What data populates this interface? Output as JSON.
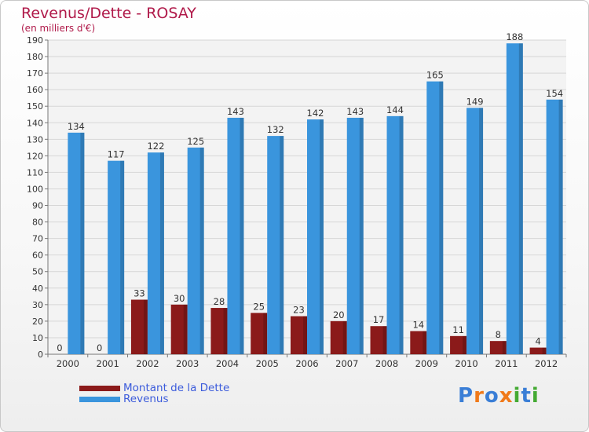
{
  "chart_data": {
    "type": "bar",
    "title": "Revenus/Dette - ROSAY",
    "subtitle": "(en milliers d'€)",
    "categories": [
      "2000",
      "2001",
      "2002",
      "2003",
      "2004",
      "2005",
      "2006",
      "2007",
      "2008",
      "2009",
      "2010",
      "2011",
      "2012"
    ],
    "series": [
      {
        "name": "Montant de la Dette",
        "color": "#8b1a1a",
        "values": [
          0,
          0,
          33,
          30,
          28,
          25,
          23,
          20,
          17,
          14,
          11,
          8,
          4
        ]
      },
      {
        "name": "Revenus",
        "color": "#3a95dd",
        "values": [
          134,
          117,
          122,
          125,
          143,
          132,
          142,
          143,
          144,
          165,
          149,
          188,
          154
        ]
      }
    ],
    "ylim": [
      0,
      190
    ],
    "ytick_step": 10,
    "grid": true,
    "legend_position": "bottom-left",
    "xlabel": "",
    "ylabel": ""
  },
  "logo": {
    "text": "Proxiti",
    "colors": [
      "#3a7ed6",
      "#f07a1a",
      "#3a7ed6",
      "#f07a1a",
      "#44aa33",
      "#3a7ed6",
      "#44aa33"
    ]
  }
}
